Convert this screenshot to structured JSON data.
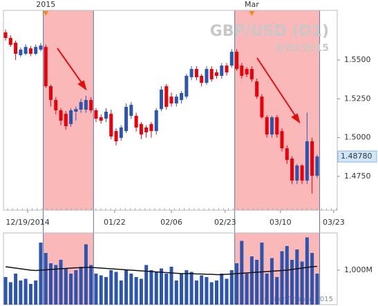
{
  "chart_data": [
    {
      "type": "candlestick",
      "title": "GBP/USD (D1)",
      "subtitle": "3/20/2015",
      "up_color": "#2d55ad",
      "down_color": "#e8000b",
      "highlight_color": "#fbb8b8",
      "candles": [
        [
          1.5678,
          1.5695,
          1.5625,
          1.5642
        ],
        [
          1.5642,
          1.566,
          1.5585,
          1.5598
        ],
        [
          1.5611,
          1.5625,
          1.55,
          1.554
        ],
        [
          1.5531,
          1.558,
          1.552,
          1.5567
        ],
        [
          1.554,
          1.56,
          1.553,
          1.5584
        ],
        [
          1.5575,
          1.559,
          1.5525,
          1.554
        ],
        [
          1.554,
          1.56,
          1.553,
          1.5584
        ],
        [
          1.5567,
          1.561,
          1.5555,
          1.5593
        ],
        [
          1.5584,
          1.56,
          1.532,
          1.5331
        ],
        [
          1.5331,
          1.534,
          1.52,
          1.5242
        ],
        [
          1.5242,
          1.526,
          1.515,
          1.5176
        ],
        [
          1.5176,
          1.519,
          1.508,
          1.5109
        ],
        [
          1.5153,
          1.517,
          1.505,
          1.5074
        ],
        [
          1.5087,
          1.519,
          1.507,
          1.5176
        ],
        [
          1.5167,
          1.52,
          1.511,
          1.5184
        ],
        [
          1.518,
          1.525,
          1.516,
          1.5229
        ],
        [
          1.518,
          1.527,
          1.516,
          1.5242
        ],
        [
          1.5242,
          1.526,
          1.516,
          1.5176
        ],
        [
          1.5176,
          1.519,
          1.51,
          1.5122
        ],
        [
          1.5131,
          1.515,
          1.509,
          1.5109
        ],
        [
          1.5122,
          1.519,
          1.51,
          1.5167
        ],
        [
          1.5153,
          1.518,
          1.499,
          1.5007
        ],
        [
          1.5042,
          1.506,
          1.495,
          1.4976
        ],
        [
          1.4998,
          1.508,
          1.498,
          1.5065
        ],
        [
          1.5042,
          1.522,
          1.503,
          1.5198
        ],
        [
          1.514,
          1.523,
          1.512,
          1.5211
        ],
        [
          1.514,
          1.516,
          1.504,
          1.5065
        ],
        [
          1.5087,
          1.51,
          1.499,
          1.502
        ],
        [
          1.5065,
          1.508,
          1.5,
          1.5034
        ],
        [
          1.5087,
          1.51,
          1.5,
          1.5042
        ],
        [
          1.5042,
          1.519,
          1.502,
          1.5176
        ],
        [
          1.5184,
          1.533,
          1.517,
          1.5309
        ],
        [
          1.5331,
          1.5345,
          1.518,
          1.5198
        ],
        [
          1.5264,
          1.529,
          1.52,
          1.522
        ],
        [
          1.522,
          1.528,
          1.52,
          1.5264
        ],
        [
          1.5242,
          1.53,
          1.522,
          1.5287
        ],
        [
          1.5264,
          1.541,
          1.525,
          1.5398
        ],
        [
          1.5389,
          1.546,
          1.537,
          1.5442
        ],
        [
          1.5442,
          1.546,
          1.537,
          1.5389
        ],
        [
          1.5398,
          1.541,
          1.533,
          1.5353
        ],
        [
          1.5353,
          1.546,
          1.534,
          1.5442
        ],
        [
          1.5442,
          1.546,
          1.536,
          1.5375
        ],
        [
          1.542,
          1.544,
          1.538,
          1.5398
        ],
        [
          1.5398,
          1.548,
          1.538,
          1.5464
        ],
        [
          1.5464,
          1.548,
          1.54,
          1.542
        ],
        [
          1.5464,
          1.557,
          1.545,
          1.5553
        ],
        [
          1.5553,
          1.557,
          1.543,
          1.5442
        ],
        [
          1.5464,
          1.548,
          1.538,
          1.5398
        ],
        [
          1.5442,
          1.5455,
          1.539,
          1.5407
        ],
        [
          1.5442,
          1.546,
          1.536,
          1.5375
        ],
        [
          1.5362,
          1.538,
          1.525,
          1.5264
        ],
        [
          1.5264,
          1.528,
          1.512,
          1.5131
        ],
        [
          1.5131,
          1.5145,
          1.5,
          1.502
        ],
        [
          1.502,
          1.514,
          1.5,
          1.5131
        ],
        [
          1.5131,
          1.5145,
          1.5,
          1.502
        ],
        [
          1.5042,
          1.506,
          1.491,
          1.4931
        ],
        [
          1.4931,
          1.495,
          1.483,
          1.4856
        ],
        [
          1.4865,
          1.488,
          1.47,
          1.4723
        ],
        [
          1.4723,
          1.483,
          1.47,
          1.482
        ],
        [
          1.482,
          1.483,
          1.47,
          1.4723
        ],
        [
          1.4723,
          1.516,
          1.47,
          1.4976
        ],
        [
          1.4976,
          1.5,
          1.464,
          1.4754
        ],
        [
          1.4754,
          1.489,
          1.474,
          1.4878
        ]
      ],
      "xlim": [
        -0.42,
        66
      ],
      "ylim": [
        1.4532,
        1.582
      ],
      "yticks": [
        {
          "value": 1.475,
          "label": "1.4750"
        },
        {
          "value": 1.5,
          "label": "1.5000"
        },
        {
          "value": 1.525,
          "label": "1.5250"
        },
        {
          "value": 1.55,
          "label": "1.5500"
        }
      ],
      "xticks": [
        {
          "value": 4.4,
          "label": "12/19/2014"
        },
        {
          "value": 21.7,
          "label": "01/22"
        },
        {
          "value": 33,
          "label": "02/06"
        },
        {
          "value": 43.7,
          "label": "02/23"
        },
        {
          "value": 54.7,
          "label": "03/10"
        },
        {
          "value": 65.3,
          "label": "03/23"
        }
      ],
      "period_marks": [
        {
          "value": 8,
          "label": "2015"
        },
        {
          "value": 49,
          "label": "Mar"
        }
      ],
      "highlights": [
        [
          7.5,
          17.5
        ],
        [
          45.6,
          62.5
        ]
      ],
      "last_price": {
        "value": 1.4878,
        "label": "1.48780"
      }
    },
    {
      "type": "bar",
      "color": "#2d55ad",
      "watermark": "(C) KenFinance 2015",
      "values": [
        800,
        650,
        900,
        700,
        750,
        600,
        700,
        1800,
        1500,
        1200,
        1150,
        1300,
        1050,
        900,
        1000,
        1100,
        1750,
        1150,
        900,
        850,
        800,
        1000,
        950,
        700,
        1000,
        900,
        800,
        750,
        1150,
        1000,
        950,
        1050,
        900,
        1100,
        700,
        900,
        1000,
        950,
        700,
        850,
        800,
        650,
        700,
        900,
        750,
        1000,
        1200,
        1850,
        900,
        1400,
        1300,
        1800,
        900,
        1350,
        800,
        1550,
        1700,
        1300,
        1600,
        1250,
        1950,
        1500,
        900
      ],
      "ma": {
        "color": "#111111",
        "values": [
          1100,
          1080,
          1060,
          1040,
          1020,
          1000,
          990,
          1000,
          1010,
          1020,
          1030,
          1040,
          1050,
          1060,
          1070,
          1070,
          1080,
          1080,
          1070,
          1060,
          1050,
          1040,
          1030,
          1020,
          1010,
          1000,
          990,
          980,
          970,
          960,
          950,
          940,
          930,
          920,
          910,
          900,
          900,
          900,
          890,
          890,
          880,
          880,
          870,
          870,
          880,
          890,
          900,
          910,
          920,
          930,
          940,
          950,
          960,
          970,
          980,
          990,
          1000,
          1020,
          1040,
          1060,
          1080,
          1100,
          1110
        ]
      },
      "xlim": [
        -0.42,
        66
      ],
      "ylim": [
        0,
        2080
      ],
      "yticks": [
        {
          "value": 1000,
          "label": "1,000M"
        }
      ]
    }
  ]
}
